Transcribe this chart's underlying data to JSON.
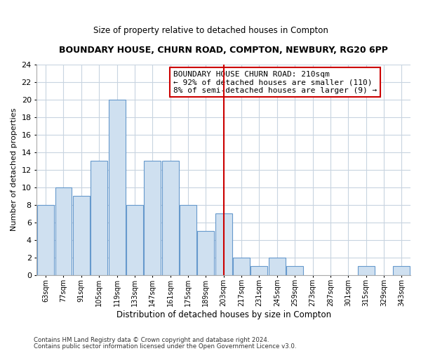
{
  "title": "BOUNDARY HOUSE, CHURN ROAD, COMPTON, NEWBURY, RG20 6PP",
  "subtitle": "Size of property relative to detached houses in Compton",
  "xlabel": "Distribution of detached houses by size in Compton",
  "ylabel": "Number of detached properties",
  "bins": [
    63,
    77,
    91,
    105,
    119,
    133,
    147,
    161,
    175,
    189,
    203,
    217,
    231,
    245,
    259,
    273,
    287,
    301,
    315,
    329,
    343,
    357
  ],
  "counts": [
    8,
    10,
    9,
    13,
    20,
    8,
    13,
    13,
    8,
    5,
    7,
    2,
    1,
    2,
    1,
    0,
    0,
    0,
    1,
    0,
    1
  ],
  "bar_color": "#cfe0f0",
  "bar_edge_color": "#6699cc",
  "grid_color": "#c8d4e0",
  "property_line_x": 210,
  "property_line_color": "#cc0000",
  "annotation_line1": "BOUNDARY HOUSE CHURN ROAD: 210sqm",
  "annotation_line2": "← 92% of detached houses are smaller (110)",
  "annotation_line3": "8% of semi-detached houses are larger (9) →",
  "annotation_box_color": "#ffffff",
  "annotation_box_edge": "#cc0000",
  "ylim": [
    0,
    24
  ],
  "yticks": [
    0,
    2,
    4,
    6,
    8,
    10,
    12,
    14,
    16,
    18,
    20,
    22,
    24
  ],
  "tick_labels": [
    "63sqm",
    "77sqm",
    "91sqm",
    "105sqm",
    "119sqm",
    "133sqm",
    "147sqm",
    "161sqm",
    "175sqm",
    "189sqm",
    "203sqm",
    "217sqm",
    "231sqm",
    "245sqm",
    "259sqm",
    "273sqm",
    "287sqm",
    "301sqm",
    "315sqm",
    "329sqm",
    "343sqm"
  ],
  "footnote1": "Contains HM Land Registry data © Crown copyright and database right 2024.",
  "footnote2": "Contains public sector information licensed under the Open Government Licence v3.0.",
  "bg_color": "#ffffff",
  "plot_bg_color": "#ffffff"
}
